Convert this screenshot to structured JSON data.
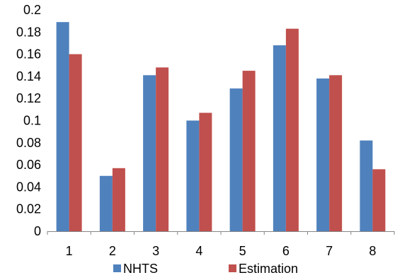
{
  "chart_data": {
    "type": "bar",
    "categories": [
      "1",
      "2",
      "3",
      "4",
      "5",
      "6",
      "7",
      "8"
    ],
    "series": [
      {
        "name": "NHTS",
        "color": "#4f81bd",
        "values": [
          0.189,
          0.05,
          0.141,
          0.1,
          0.129,
          0.168,
          0.138,
          0.082
        ]
      },
      {
        "name": "Estimation",
        "color": "#c0504d",
        "values": [
          0.16,
          0.057,
          0.148,
          0.107,
          0.145,
          0.183,
          0.141,
          0.056
        ]
      }
    ],
    "ylim": [
      0,
      0.2
    ],
    "yticks": [
      "0",
      "0.02",
      "0.04",
      "0.06",
      "0.08",
      "0.1",
      "0.12",
      "0.14",
      "0.16",
      "0.18",
      "0.2"
    ],
    "grid": false,
    "legend_position": "bottom"
  }
}
